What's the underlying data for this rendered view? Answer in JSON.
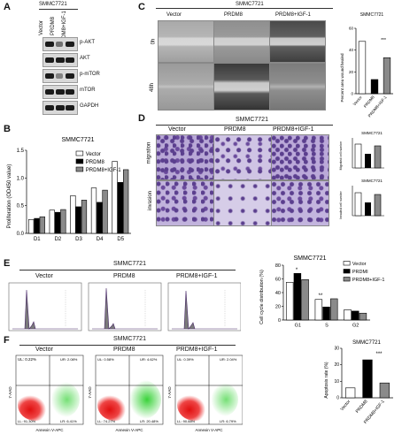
{
  "panels": {
    "A": "A",
    "B": "B",
    "C": "C",
    "D": "D",
    "E": "E",
    "F": "F"
  },
  "cell_line": "SMMC7721",
  "groups": [
    "Vector",
    "PRDM8",
    "PRDM8+IGF-1"
  ],
  "panel_a": {
    "title": "SMMC7721",
    "lane_labels": [
      "Vector",
      "PRDM8",
      "PRDM8+IGF-1"
    ],
    "bands": [
      "p-AKT",
      "AKT",
      "p-mTOR",
      "mTOR",
      "GAPDH"
    ]
  },
  "panel_c": {
    "title": "SMMC7721",
    "col_labels": [
      "Vector",
      "PRDM8",
      "PRDM8+IGF-1"
    ],
    "row_labels": [
      "0h",
      "48h"
    ],
    "chart_title": "SMMC7721",
    "ylabel": "Percent area wound healed",
    "sig": "***"
  },
  "panel_d": {
    "title": "SMMC7721",
    "col_labels": [
      "Vector",
      "PRDM8",
      "PRDM8+IGF-1"
    ],
    "row_labels": [
      "migration",
      "invasion"
    ],
    "mini_title": "SMMC7721",
    "mini_ylabels": [
      "Migrated cell number",
      "Invaded cell number"
    ]
  },
  "panel_e": {
    "title": "SMMC7721",
    "col_labels": [
      "Vector",
      "PRDM8",
      "PRDM8+IGF-1"
    ],
    "chart_title": "SMMC7721",
    "ylabel": "Cell cycle distribution (%)",
    "legend": [
      "Vector",
      "PRDMI",
      "PRDM8+IGF-1"
    ],
    "sig": [
      "*",
      "**"
    ]
  },
  "panel_f": {
    "title": "SMMC7721",
    "col_labels": [
      "Vector",
      "PRDM8",
      "PRDM8+IGF-1"
    ],
    "xaxis": "Annexin V-APC",
    "yaxis": "7-AAD",
    "quads": [
      {
        "ul": "UL: 0.22%",
        "ur": "UR: 2.08%",
        "ll": "LL: 91.30%",
        "lr": "LR: 6.41%"
      },
      {
        "ul": "UL: 0.58%",
        "ur": "UR: 4.62%",
        "ll": "LL: 74.27%",
        "lr": "LR: 20.48%"
      },
      {
        "ul": "UL: 0.39%",
        "ur": "UR: 2.04%",
        "ll": "LL: 90.88%",
        "lr": "LR: 6.79%"
      }
    ],
    "chart_title": "SMMC7721",
    "ylabel": "Apoptosis rate (%)",
    "sig": "***"
  },
  "chart_data": [
    {
      "type": "bar",
      "title": "SMMC7721",
      "ylabel": "Percent area wound healed",
      "categories": [
        "Vector",
        "PRDM8",
        "PRDM8+IGF-1"
      ],
      "values": [
        48,
        13,
        33
      ],
      "ylim": [
        0,
        60
      ],
      "yticks": [
        0,
        20,
        40,
        60
      ]
    },
    {
      "type": "bar",
      "title": "SMMC7721",
      "ylabel": "Proliferation (OD450 value)",
      "categories": [
        "D1",
        "D2",
        "D3",
        "D4",
        "D5"
      ],
      "series": [
        {
          "name": "Vector",
          "values": [
            0.25,
            0.42,
            0.68,
            0.82,
            1.3
          ]
        },
        {
          "name": "PRDM8",
          "values": [
            0.27,
            0.38,
            0.48,
            0.56,
            0.92
          ]
        },
        {
          "name": "PRDM8+IGF-1",
          "values": [
            0.3,
            0.43,
            0.6,
            0.78,
            1.15
          ]
        }
      ],
      "ylim": [
        0,
        1.5
      ],
      "yticks": [
        0.0,
        0.5,
        1.0,
        1.5
      ]
    },
    {
      "type": "bar",
      "title": "SMMC7721",
      "ylabel": "Cell cycle distribution (%)",
      "categories": [
        "G1",
        "S",
        "G2"
      ],
      "series": [
        {
          "name": "Vector",
          "values": [
            55,
            30,
            15
          ]
        },
        {
          "name": "PRDMI",
          "values": [
            68,
            19,
            13
          ]
        },
        {
          "name": "PRDM8+IGF-1",
          "values": [
            59,
            31,
            10
          ]
        }
      ],
      "ylim": [
        0,
        80
      ],
      "yticks": [
        0,
        20,
        40,
        60,
        80
      ]
    },
    {
      "type": "bar",
      "title": "SMMC7721",
      "ylabel": "Apoptosis rate (%)",
      "categories": [
        "Vector",
        "PRDM8",
        "PRDM8+IGF-1"
      ],
      "values": [
        6,
        23,
        9
      ],
      "ylim": [
        0,
        30
      ],
      "yticks": [
        0,
        10,
        20,
        30
      ]
    }
  ]
}
